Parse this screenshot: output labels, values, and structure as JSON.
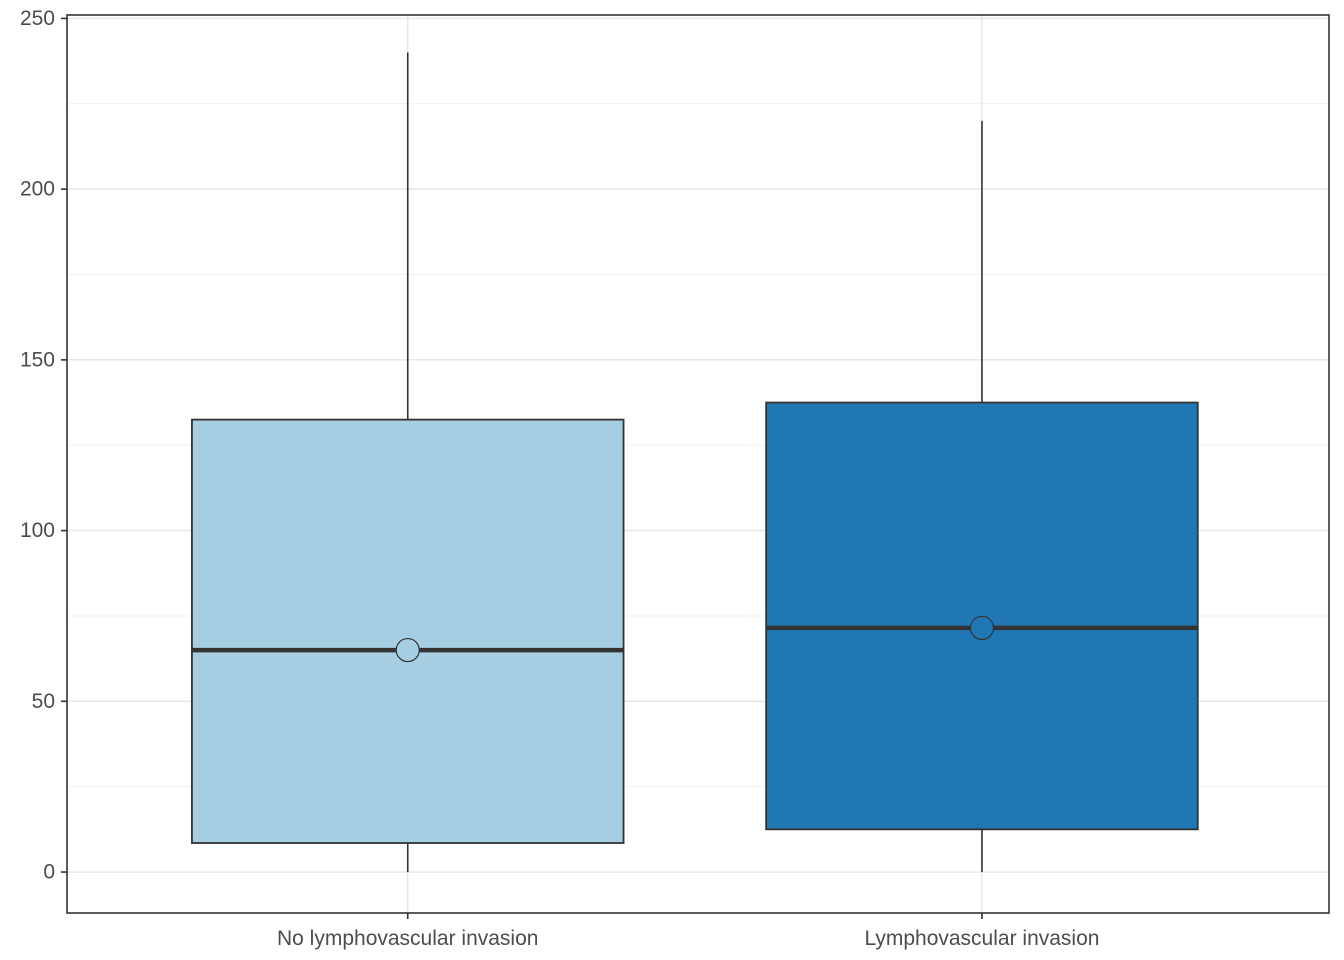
{
  "chart_data": {
    "type": "box",
    "title": "",
    "xlabel": "",
    "ylabel": "",
    "ylim": [
      -12,
      251
    ],
    "y_ticks": [
      0,
      50,
      100,
      150,
      200,
      250
    ],
    "y_tick_labels": [
      "0",
      "50",
      "100",
      "150",
      "200",
      "250"
    ],
    "grid": true,
    "legend": "none",
    "categories": [
      "No lymphovascular invasion",
      "Lymphovascular invasion"
    ],
    "boxes": [
      {
        "category": "No lymphovascular invasion",
        "min": 0,
        "q1": 8.5,
        "median": 65,
        "q3": 132.5,
        "max": 240,
        "mean": 65,
        "color": "#a6cee3"
      },
      {
        "category": "Lymphovascular invasion",
        "min": 0,
        "q1": 12.5,
        "median": 71.5,
        "q3": 137.5,
        "max": 220,
        "mean": 71.5,
        "color": "#1f78b4"
      }
    ]
  }
}
